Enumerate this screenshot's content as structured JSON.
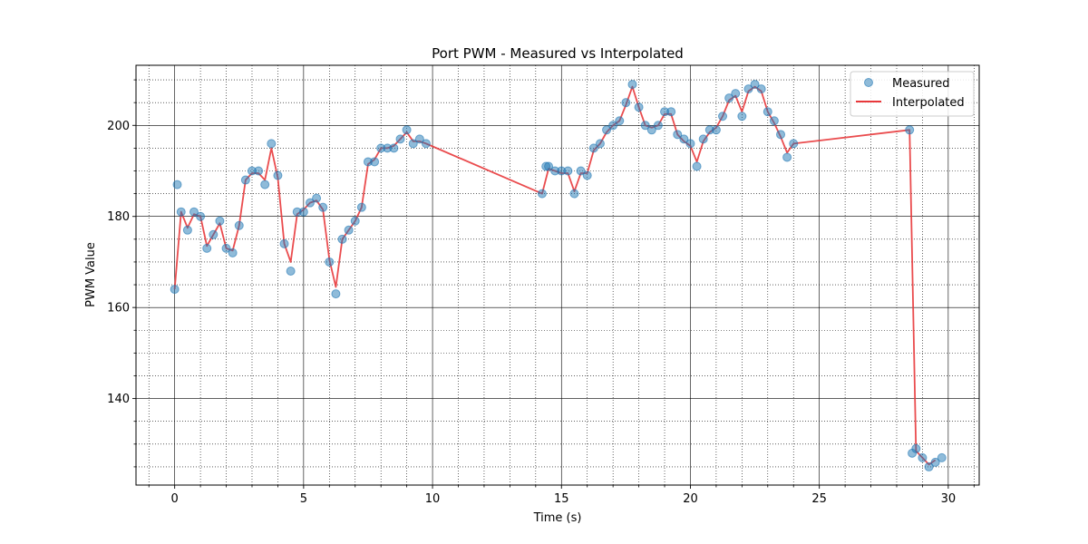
{
  "chart_data": {
    "type": "scatter",
    "title": "Port PWM - Measured vs Interpolated",
    "xlabel": "Time (s)",
    "ylabel": "PWM Value",
    "xlim": [
      -1.5,
      31.2
    ],
    "ylim": [
      121,
      213.2
    ],
    "x_ticks": [
      0,
      5,
      10,
      15,
      20,
      25,
      30
    ],
    "x_tick_labels": [
      "0",
      "5",
      "10",
      "15",
      "20",
      "25",
      "30"
    ],
    "y_ticks": [
      140,
      160,
      180,
      200
    ],
    "y_tick_labels": [
      "140",
      "160",
      "180",
      "200"
    ],
    "x_minor_step": 1,
    "y_minor_step": 5,
    "grid": true,
    "legend_position": "top-right",
    "series": [
      {
        "name": "Measured",
        "kind": "scatter",
        "color": "#1f77b4",
        "points": [
          [
            0.0,
            164
          ],
          [
            0.1,
            187
          ],
          [
            0.25,
            181
          ],
          [
            0.5,
            177
          ],
          [
            0.75,
            181
          ],
          [
            1.0,
            180
          ],
          [
            1.25,
            173
          ],
          [
            1.5,
            176
          ],
          [
            1.75,
            179
          ],
          [
            2.0,
            173
          ],
          [
            2.25,
            172
          ],
          [
            2.5,
            178
          ],
          [
            2.75,
            188
          ],
          [
            3.0,
            190
          ],
          [
            3.25,
            190
          ],
          [
            3.5,
            187
          ],
          [
            3.75,
            196
          ],
          [
            4.0,
            189
          ],
          [
            4.25,
            174
          ],
          [
            4.5,
            168
          ],
          [
            4.75,
            181
          ],
          [
            5.0,
            181
          ],
          [
            5.25,
            183
          ],
          [
            5.5,
            184
          ],
          [
            5.75,
            182
          ],
          [
            6.0,
            170
          ],
          [
            6.25,
            163
          ],
          [
            6.5,
            175
          ],
          [
            6.75,
            177
          ],
          [
            7.0,
            179
          ],
          [
            7.25,
            182
          ],
          [
            7.5,
            192
          ],
          [
            7.75,
            192
          ],
          [
            8.0,
            195
          ],
          [
            8.25,
            195
          ],
          [
            8.5,
            195
          ],
          [
            8.75,
            197
          ],
          [
            9.0,
            199
          ],
          [
            9.25,
            196
          ],
          [
            9.5,
            197
          ],
          [
            9.75,
            196
          ],
          [
            14.25,
            185
          ],
          [
            14.4,
            191
          ],
          [
            14.5,
            191
          ],
          [
            14.75,
            190
          ],
          [
            15.0,
            190
          ],
          [
            15.25,
            190
          ],
          [
            15.5,
            185
          ],
          [
            15.75,
            190
          ],
          [
            16.0,
            189
          ],
          [
            16.25,
            195
          ],
          [
            16.5,
            196
          ],
          [
            16.75,
            199
          ],
          [
            17.0,
            200
          ],
          [
            17.25,
            201
          ],
          [
            17.5,
            205
          ],
          [
            17.75,
            209
          ],
          [
            18.0,
            204
          ],
          [
            18.25,
            200
          ],
          [
            18.5,
            199
          ],
          [
            18.75,
            200
          ],
          [
            19.0,
            203
          ],
          [
            19.25,
            203
          ],
          [
            19.5,
            198
          ],
          [
            19.75,
            197
          ],
          [
            20.0,
            196
          ],
          [
            20.25,
            191
          ],
          [
            20.5,
            197
          ],
          [
            20.75,
            199
          ],
          [
            21.0,
            199
          ],
          [
            21.25,
            202
          ],
          [
            21.5,
            206
          ],
          [
            21.75,
            207
          ],
          [
            22.0,
            202
          ],
          [
            22.25,
            208
          ],
          [
            22.5,
            209
          ],
          [
            22.75,
            208
          ],
          [
            23.0,
            203
          ],
          [
            23.25,
            201
          ],
          [
            23.5,
            198
          ],
          [
            23.75,
            193
          ],
          [
            24.0,
            196
          ],
          [
            28.5,
            199
          ],
          [
            28.6,
            128
          ],
          [
            28.75,
            129
          ],
          [
            29.0,
            127
          ],
          [
            29.25,
            125
          ],
          [
            29.5,
            126
          ],
          [
            29.75,
            127
          ]
        ]
      },
      {
        "name": "Interpolated",
        "kind": "line",
        "color": "#e8383b",
        "points": [
          [
            0.0,
            164
          ],
          [
            0.25,
            181
          ],
          [
            0.5,
            177.5
          ],
          [
            0.75,
            180.5
          ],
          [
            1.0,
            180
          ],
          [
            1.25,
            173.5
          ],
          [
            1.5,
            176
          ],
          [
            1.75,
            178.5
          ],
          [
            2.0,
            173
          ],
          [
            2.25,
            172.5
          ],
          [
            2.5,
            178
          ],
          [
            2.75,
            188
          ],
          [
            3.0,
            189.5
          ],
          [
            3.25,
            189.5
          ],
          [
            3.5,
            188
          ],
          [
            3.75,
            195
          ],
          [
            4.0,
            188.5
          ],
          [
            4.25,
            174
          ],
          [
            4.5,
            170
          ],
          [
            4.75,
            180.5
          ],
          [
            5.0,
            181.5
          ],
          [
            5.25,
            183
          ],
          [
            5.5,
            183.5
          ],
          [
            5.75,
            181.5
          ],
          [
            6.0,
            170.5
          ],
          [
            6.25,
            164.5
          ],
          [
            6.5,
            175
          ],
          [
            6.75,
            177
          ],
          [
            7.0,
            179
          ],
          [
            7.25,
            182
          ],
          [
            7.5,
            191.5
          ],
          [
            7.75,
            192.5
          ],
          [
            8.0,
            195
          ],
          [
            8.25,
            195
          ],
          [
            8.5,
            195.5
          ],
          [
            8.75,
            197
          ],
          [
            9.0,
            198.5
          ],
          [
            9.25,
            196.5
          ],
          [
            9.5,
            196.5
          ],
          [
            9.75,
            196
          ],
          [
            14.25,
            185
          ],
          [
            14.5,
            190.5
          ],
          [
            14.75,
            190
          ],
          [
            15.0,
            189.5
          ],
          [
            15.25,
            189.5
          ],
          [
            15.5,
            185.5
          ],
          [
            15.75,
            189.5
          ],
          [
            16.0,
            189.5
          ],
          [
            16.25,
            194.5
          ],
          [
            16.5,
            196
          ],
          [
            16.75,
            198.5
          ],
          [
            17.0,
            200
          ],
          [
            17.25,
            201
          ],
          [
            17.5,
            204.5
          ],
          [
            17.75,
            208.5
          ],
          [
            18.0,
            204
          ],
          [
            18.25,
            200
          ],
          [
            18.5,
            199.5
          ],
          [
            18.75,
            200
          ],
          [
            19.0,
            202.5
          ],
          [
            19.25,
            202.5
          ],
          [
            19.5,
            198
          ],
          [
            19.75,
            196.5
          ],
          [
            20.0,
            195.5
          ],
          [
            20.25,
            192
          ],
          [
            20.5,
            196.5
          ],
          [
            20.75,
            198.5
          ],
          [
            21.0,
            199.5
          ],
          [
            21.25,
            202
          ],
          [
            21.5,
            205.5
          ],
          [
            21.75,
            206.5
          ],
          [
            22.0,
            203
          ],
          [
            22.25,
            207.5
          ],
          [
            22.5,
            208.5
          ],
          [
            22.75,
            207.5
          ],
          [
            23.0,
            203
          ],
          [
            23.25,
            200.5
          ],
          [
            23.5,
            197.5
          ],
          [
            23.75,
            194
          ],
          [
            24.0,
            196
          ],
          [
            28.5,
            199
          ],
          [
            28.75,
            128.5
          ],
          [
            29.0,
            127
          ],
          [
            29.25,
            125.5
          ],
          [
            29.5,
            126.5
          ]
        ]
      }
    ]
  }
}
